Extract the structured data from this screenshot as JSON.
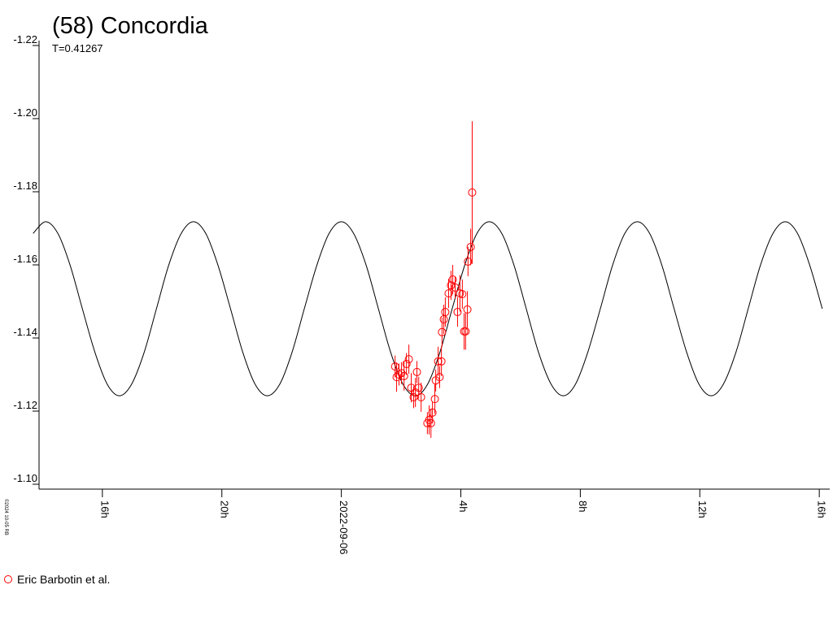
{
  "chart_data": {
    "type": "line",
    "title": "(58) Concordia",
    "subtitle": "T=0.41267",
    "credit": "©2024 10-05 RB",
    "xlim": [
      -10.12,
      16.35
    ],
    "xticks": [
      {
        "value": -8,
        "label": "16h"
      },
      {
        "value": -4,
        "label": "20h"
      },
      {
        "value": 0,
        "label": "2022-09-06"
      },
      {
        "value": 4,
        "label": "4h"
      },
      {
        "value": 8,
        "label": "8h"
      },
      {
        "value": 12,
        "label": "12h"
      },
      {
        "value": 16,
        "label": "16h"
      }
    ],
    "ylim": [
      -1.22,
      -1.1
    ],
    "y_inverted": true,
    "yticks": [
      -1.22,
      {
        "value": -1.2,
        "label": "-1.20"
      },
      -1.18,
      -1.16,
      -1.14,
      -1.12,
      {
        "value": -1.1,
        "label": "-1.10"
      }
    ],
    "series": [
      {
        "type": "line",
        "color": "#000000",
        "x": [
          -10.32,
          -9.9,
          -9.49,
          -9.08,
          -8.67,
          -8.25,
          -7.84,
          -7.43,
          -7.02,
          -6.6,
          -6.19,
          -5.78,
          -5.36,
          -4.95,
          -4.54,
          -4.13,
          -3.71,
          -3.3,
          -2.89,
          -2.48,
          -2.06,
          -1.65,
          -1.24,
          -0.82,
          -0.41,
          0.0,
          0.41,
          0.83,
          1.24,
          1.65,
          2.06,
          2.48,
          2.89,
          3.3,
          3.71,
          4.13,
          4.54,
          4.95,
          5.37,
          5.78,
          6.19,
          6.6,
          7.02,
          7.43,
          7.84,
          8.25,
          8.67,
          9.08,
          9.49,
          9.91,
          10.32,
          10.73,
          11.14,
          11.56,
          11.97,
          12.38,
          12.79,
          13.21,
          13.62,
          14.03,
          14.45,
          14.86,
          15.27,
          15.68,
          16.1
        ],
        "values": [
          -1.1686,
          -1.1718,
          -1.1686,
          -1.1599,
          -1.148,
          -1.1361,
          -1.1274,
          -1.1242,
          -1.1274,
          -1.1361,
          -1.148,
          -1.1599,
          -1.1686,
          -1.1718,
          -1.1686,
          -1.1599,
          -1.148,
          -1.1361,
          -1.1274,
          -1.1242,
          -1.1274,
          -1.1361,
          -1.148,
          -1.1599,
          -1.1686,
          -1.1718,
          -1.1686,
          -1.1599,
          -1.148,
          -1.1361,
          -1.1274,
          -1.1242,
          -1.1274,
          -1.1361,
          -1.148,
          -1.1599,
          -1.1686,
          -1.1718,
          -1.1686,
          -1.1599,
          -1.148,
          -1.1361,
          -1.1274,
          -1.1242,
          -1.1274,
          -1.1361,
          -1.148,
          -1.1599,
          -1.1686,
          -1.1718,
          -1.1686,
          -1.1599,
          -1.148,
          -1.1361,
          -1.1274,
          -1.1242,
          -1.1274,
          -1.1361,
          -1.148,
          -1.1599,
          -1.1686,
          -1.1718,
          -1.1686,
          -1.1599,
          -1.148
        ]
      },
      {
        "type": "scatter",
        "name": "Eric Barbotin et al.",
        "color": "#ff0000",
        "x": [
          1.8,
          1.85,
          1.93,
          2.01,
          2.1,
          2.18,
          2.26,
          2.34,
          2.42,
          2.48,
          2.53,
          2.59,
          2.67,
          2.88,
          2.94,
          3.0,
          3.05,
          3.13,
          3.16,
          3.24,
          3.29,
          3.35,
          3.37,
          3.43,
          3.48,
          3.59,
          3.67,
          3.73,
          3.81,
          3.89,
          3.97,
          4.05,
          4.11,
          4.16,
          4.22,
          4.24,
          4.33,
          4.38
        ],
        "values": [
          -1.1322,
          -1.1293,
          -1.13,
          -1.1304,
          -1.1296,
          -1.1329,
          -1.1342,
          -1.1264,
          -1.1238,
          -1.1251,
          -1.1307,
          -1.1264,
          -1.1238,
          -1.1167,
          -1.1176,
          -1.1167,
          -1.1196,
          -1.1233,
          -1.1284,
          -1.1336,
          -1.1293,
          -1.1336,
          -1.1416,
          -1.1451,
          -1.1471,
          -1.1522,
          -1.1544,
          -1.156,
          -1.1538,
          -1.1471,
          -1.1522,
          -1.152,
          -1.1418,
          -1.1418,
          -1.1478,
          -1.1609,
          -1.1649,
          -1.1798
        ],
        "errors": [
          0.003,
          0.004,
          0.003,
          0.003,
          0.004,
          0.003,
          0.004,
          0.004,
          0.003,
          0.004,
          0.003,
          0.003,
          0.004,
          0.003,
          0.004,
          0.004,
          0.003,
          0.004,
          0.003,
          0.004,
          0.003,
          0.004,
          0.004,
          0.004,
          0.004,
          0.004,
          0.004,
          0.004,
          0.003,
          0.004,
          0.005,
          0.004,
          0.005,
          0.005,
          0.005,
          0.004,
          0.005,
          0.0195
        ]
      }
    ]
  }
}
